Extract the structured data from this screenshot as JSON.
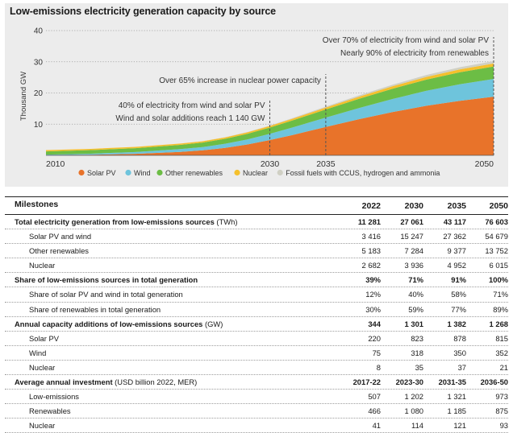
{
  "chart_data": {
    "type": "area",
    "title": "Low-emissions electricity generation capacity by source",
    "ylabel": "Thousand GW",
    "xlabel": "",
    "xlim": [
      2010,
      2050
    ],
    "ylim": [
      0,
      40
    ],
    "yticks": [
      10,
      20,
      30,
      40
    ],
    "xticks": [
      2010,
      2030,
      2035,
      2050
    ],
    "x": [
      2010,
      2014,
      2018,
      2022,
      2024,
      2026,
      2028,
      2030,
      2032,
      2035,
      2038,
      2041,
      2044,
      2047,
      2050
    ],
    "series": [
      {
        "name": "Solar PV",
        "color": "#e8732a",
        "values": [
          0.04,
          0.18,
          0.5,
          1.1,
          1.6,
          2.4,
          3.5,
          4.9,
          6.5,
          9.1,
          11.6,
          13.9,
          15.9,
          17.5,
          18.8
        ]
      },
      {
        "name": "Wind",
        "color": "#6ec4dc",
        "values": [
          0.18,
          0.35,
          0.55,
          0.9,
          1.05,
          1.3,
          1.6,
          2.0,
          2.4,
          3.0,
          3.6,
          4.2,
          4.8,
          5.3,
          5.7
        ]
      },
      {
        "name": "Other renewables",
        "color": "#6cbd45",
        "values": [
          1.05,
          1.15,
          1.25,
          1.35,
          1.45,
          1.6,
          1.8,
          2.0,
          2.25,
          2.6,
          2.95,
          3.3,
          3.6,
          3.85,
          4.0
        ]
      },
      {
        "name": "Nuclear",
        "color": "#f5c02c",
        "values": [
          0.4,
          0.4,
          0.41,
          0.42,
          0.43,
          0.45,
          0.48,
          0.52,
          0.56,
          0.62,
          0.7,
          0.78,
          0.86,
          0.92,
          0.96
        ]
      },
      {
        "name": "Fossil fuels with CCUS, hydrogen and ammonia",
        "color": "#d0d0c4",
        "values": [
          0,
          0,
          0,
          0.01,
          0.02,
          0.05,
          0.09,
          0.14,
          0.2,
          0.3,
          0.4,
          0.5,
          0.6,
          0.68,
          0.74
        ]
      }
    ],
    "markers": [
      2030,
      2035,
      2050
    ],
    "annotations": [
      {
        "lines": [
          "40% of electricity from wind and solar PV",
          "Wind and solar additions reach 1 140 GW"
        ],
        "year": 2030
      },
      {
        "lines": [
          "Over 65% increase in nuclear power capacity"
        ],
        "year": 2035
      },
      {
        "lines": [
          "Over 70% of electricity from wind and solar PV",
          "Nearly 90% of electricity from renewables"
        ],
        "year": 2050
      }
    ]
  },
  "table": {
    "header": {
      "label": "Milestones",
      "cols": [
        "2022",
        "2030",
        "2035",
        "2050"
      ]
    },
    "rows": [
      {
        "kind": "section",
        "label": "Total electricity generation from low-emissions sources",
        "unit": " (TWh)",
        "cols": [
          "11 281",
          "27 061",
          "43 117",
          "76 603"
        ]
      },
      {
        "kind": "sub",
        "label": "Solar PV and wind",
        "cols": [
          "3 416",
          "15 247",
          "27 362",
          "54 679"
        ]
      },
      {
        "kind": "sub",
        "label": "Other renewables",
        "cols": [
          "5 183",
          "7 284",
          "9 377",
          "13 752"
        ]
      },
      {
        "kind": "sub",
        "label": "Nuclear",
        "cols": [
          "2 682",
          "3 936",
          "4 952",
          "6 015"
        ]
      },
      {
        "kind": "section",
        "label": "Share of low-emissions sources in total generation",
        "unit": "",
        "cols": [
          "39%",
          "71%",
          "91%",
          "100%"
        ]
      },
      {
        "kind": "sub",
        "label": "Share of solar PV and wind in total generation",
        "cols": [
          "12%",
          "40%",
          "58%",
          "71%"
        ]
      },
      {
        "kind": "sub",
        "label": "Share of renewables in total generation",
        "cols": [
          "30%",
          "59%",
          "77%",
          "89%"
        ]
      },
      {
        "kind": "section",
        "label": "Annual capacity additions of low-emissions sources",
        "unit": " (GW)",
        "cols": [
          "344",
          "1 301",
          "1 382",
          "1 268"
        ]
      },
      {
        "kind": "sub",
        "label": "Solar PV",
        "cols": [
          "220",
          "823",
          "878",
          "815"
        ]
      },
      {
        "kind": "sub",
        "label": "Wind",
        "cols": [
          "75",
          "318",
          "350",
          "352"
        ]
      },
      {
        "kind": "sub",
        "label": "Nuclear",
        "cols": [
          "8",
          "35",
          "37",
          "21"
        ]
      },
      {
        "kind": "section",
        "label": "Average annual investment",
        "unit": " (USD billion 2022, MER)",
        "cols": [
          "2017-22",
          "2023-30",
          "2031-35",
          "2036-50"
        ]
      },
      {
        "kind": "sub",
        "label": "Low-emissions",
        "cols": [
          "507",
          "1 202",
          "1 321",
          "973"
        ]
      },
      {
        "kind": "sub",
        "label": "Renewables",
        "cols": [
          "466",
          "1 080",
          "1 185",
          "875"
        ]
      },
      {
        "kind": "sub",
        "label": "Nuclear",
        "cols": [
          "41",
          "114",
          "121",
          "93"
        ]
      }
    ]
  }
}
